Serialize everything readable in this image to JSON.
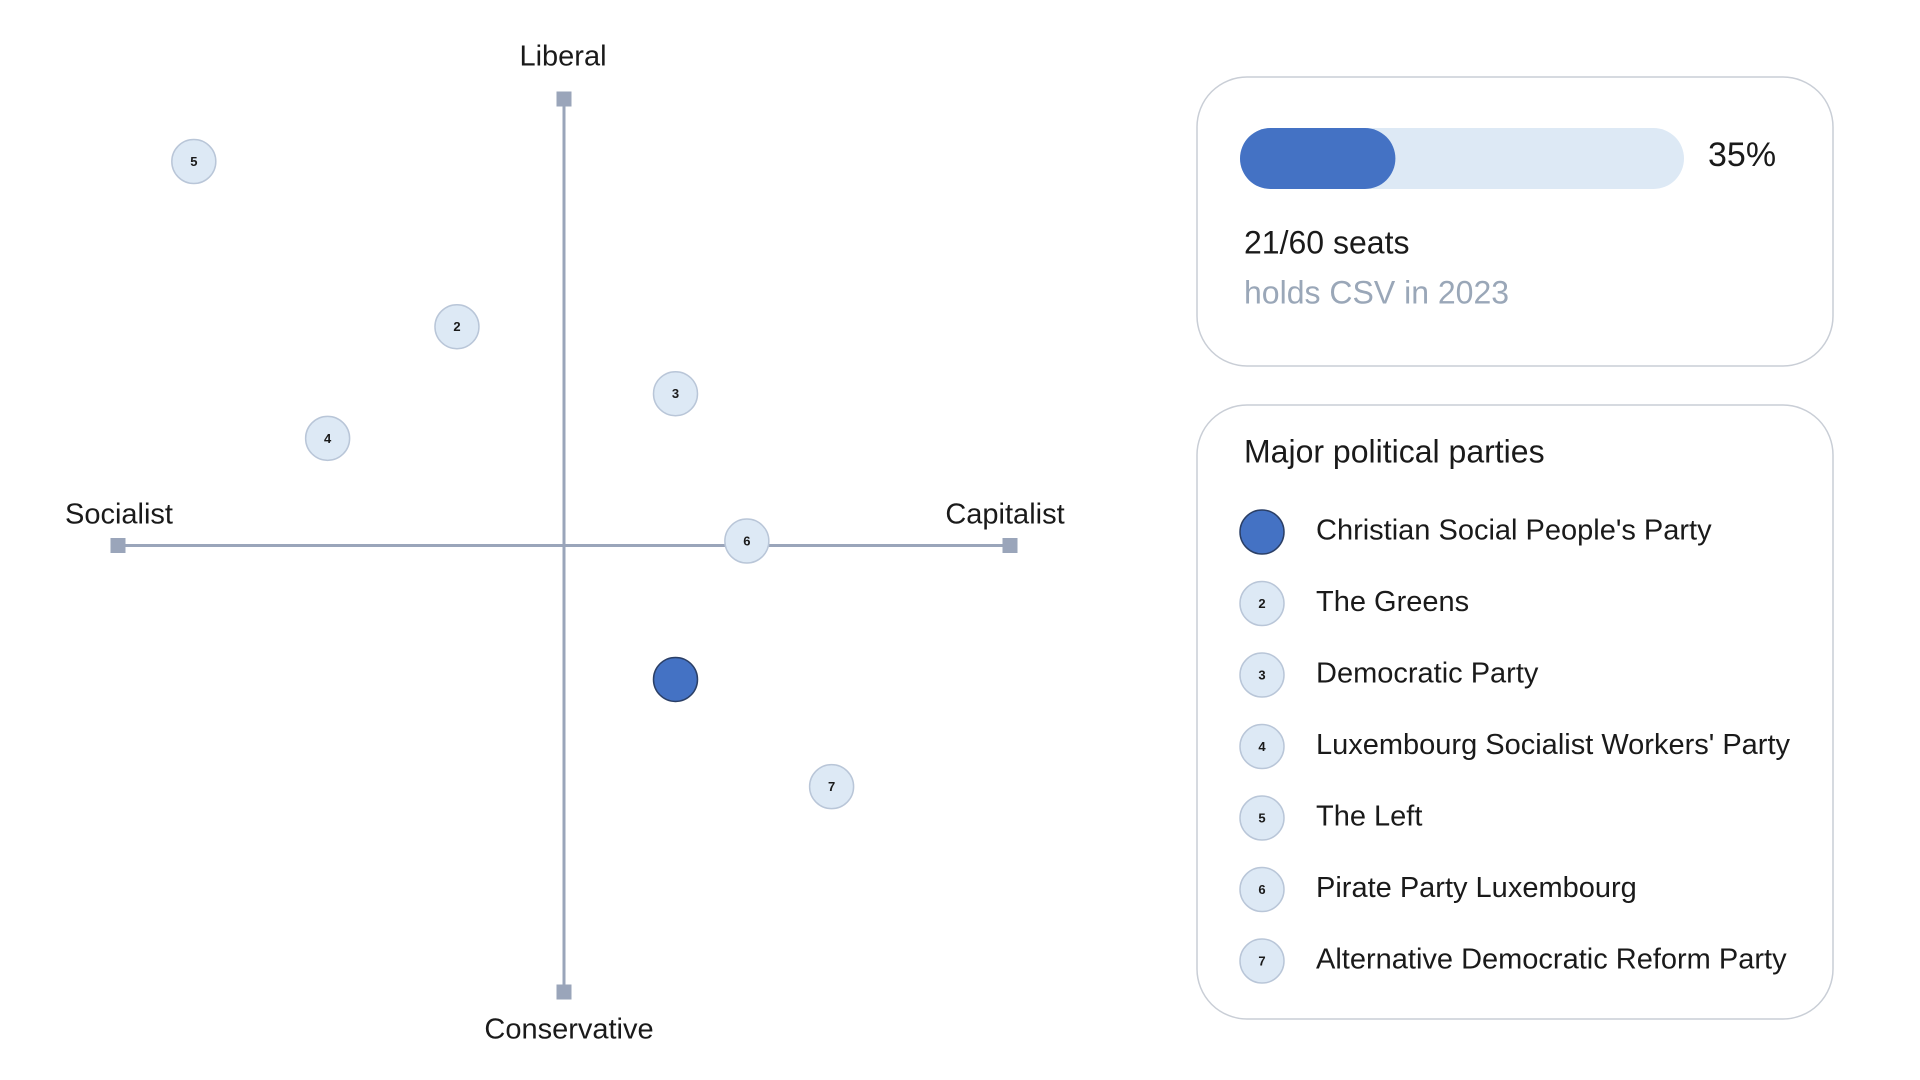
{
  "chart_data": {
    "type": "scatter",
    "x_label_left": "Socialist",
    "x_label_right": "Capitalist",
    "y_label_top": "Liberal",
    "y_label_bottom": "Conservative",
    "xlim": [
      -10,
      10
    ],
    "ylim": [
      -10,
      10
    ],
    "axis_color": "#9aa5ba",
    "points": [
      {
        "name": "Christian Social People's Party",
        "x": 2.5,
        "y": -3.0,
        "color": "#4472c4"
      },
      {
        "name": "The Greens",
        "marker": "2",
        "x": -2.4,
        "y": 4.9,
        "color": "#dde9f5"
      },
      {
        "name": "Democratic Party",
        "marker": "3",
        "x": 2.5,
        "y": 3.4,
        "color": "#dde9f5"
      },
      {
        "name": "Luxembourg Socialist Workers' Party",
        "marker": "4",
        "x": -5.3,
        "y": 2.4,
        "color": "#dde9f5"
      },
      {
        "name": "The Left",
        "marker": "5",
        "x": -8.3,
        "y": 8.6,
        "color": "#dde9f5"
      },
      {
        "name": "Pirate Party Luxembourg",
        "marker": "6",
        "x": 4.1,
        "y": 0.1,
        "color": "#dde9f5"
      },
      {
        "name": "Alternative Democratic Reform Party",
        "marker": "7",
        "x": 6.0,
        "y": -5.4,
        "color": "#dde9f5"
      }
    ],
    "legend_title": "Major political parties"
  },
  "summary": {
    "share": {
      "value": 35,
      "label": "35%"
    },
    "lim": [
      0,
      100
    ],
    "color": "#4472c4",
    "track_color": "#dde9f5",
    "seats": "21/60 seats",
    "note": "holds CSV in 2023"
  }
}
